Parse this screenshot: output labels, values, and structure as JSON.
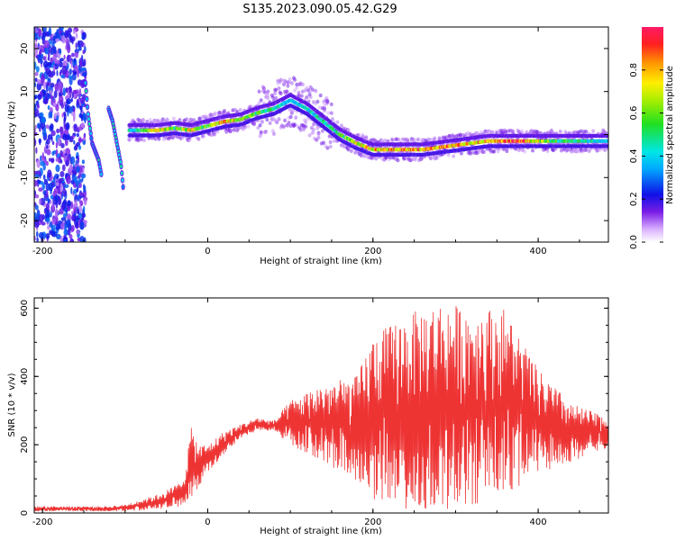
{
  "figure": {
    "title": "S135.2023.090.05.42.G29"
  },
  "chart_data": [
    {
      "type": "heatmap",
      "title": "S135.2023.090.05.42.G29",
      "xlabel": "Height of straight line (km)",
      "ylabel": "Frequency (Hz)",
      "xlim": [
        -210,
        485
      ],
      "ylim": [
        -25,
        25
      ],
      "xticks": [
        -200,
        0,
        200,
        400
      ],
      "yticks": [
        -20,
        -10,
        0,
        10,
        20
      ],
      "xtick_labels": [
        "-200",
        "0",
        "200",
        "400"
      ],
      "ytick_labels": [
        "-20",
        "-10",
        "0",
        "10",
        "20"
      ],
      "colorbar": {
        "label": "Normalized spectral amplitude",
        "range": [
          0,
          1
        ],
        "ticks": [
          0.0,
          0.2,
          0.4,
          0.6,
          0.8
        ],
        "tick_labels": [
          "0.0",
          "0.2",
          "0.4",
          "0.6",
          "0.8"
        ]
      },
      "ridge": {
        "x": [
          -85,
          -60,
          -40,
          -20,
          0,
          20,
          40,
          60,
          80,
          100,
          120,
          140,
          160,
          180,
          200,
          230,
          260,
          300,
          340,
          380,
          420,
          460,
          485
        ],
        "y": [
          1,
          1,
          1.5,
          1,
          2,
          3,
          3.5,
          5,
          6,
          8,
          6,
          3,
          0,
          -2,
          -3.5,
          -3.5,
          -3.5,
          -2.5,
          -1.5,
          -1.5,
          -1.5,
          -1.5,
          -1.5
        ],
        "amplitude": [
          0.5,
          0.9,
          0.6,
          0.8,
          0.6,
          0.9,
          0.7,
          0.6,
          0.5,
          0.4,
          0.45,
          0.5,
          0.6,
          0.75,
          0.85,
          0.9,
          0.9,
          0.85,
          0.9,
          0.95,
          0.6,
          0.5,
          0.4
        ]
      },
      "early_streaks": [
        {
          "x": [
            -148,
            -145,
            -140,
            -132,
            -128
          ],
          "y": [
            12,
            5,
            -2,
            -6,
            -10
          ]
        },
        {
          "x": [
            -120,
            -115,
            -110,
            -105,
            -102
          ],
          "y": [
            6,
            3,
            -2,
            -7,
            -13
          ]
        }
      ],
      "noise_region_x": [
        -210,
        -148
      ]
    },
    {
      "type": "line",
      "xlabel": "Height of straight line (km)",
      "ylabel": "SNR (10 * v/v)",
      "xlim": [
        -210,
        485
      ],
      "ylim": [
        0,
        630
      ],
      "xticks": [
        -200,
        0,
        200,
        400
      ],
      "yticks": [
        0,
        200,
        400,
        600
      ],
      "xtick_labels": [
        "-200",
        "0",
        "200",
        "400"
      ],
      "ytick_labels": [
        "0",
        "200",
        "400",
        "600"
      ],
      "color": "#ee3333",
      "envelope": {
        "x": [
          -210,
          -120,
          -100,
          -60,
          -40,
          -30,
          -20,
          -10,
          0,
          20,
          40,
          60,
          80,
          100,
          140,
          180,
          200,
          240,
          280,
          320,
          360,
          400,
          440,
          485
        ],
        "low": [
          5,
          5,
          5,
          10,
          15,
          20,
          40,
          80,
          120,
          170,
          220,
          240,
          240,
          200,
          150,
          80,
          40,
          10,
          10,
          20,
          60,
          100,
          150,
          190
        ],
        "high": [
          20,
          20,
          25,
          55,
          80,
          100,
          250,
          200,
          200,
          240,
          260,
          280,
          270,
          330,
          380,
          400,
          520,
          580,
          620,
          600,
          600,
          420,
          320,
          280
        ]
      }
    }
  ]
}
